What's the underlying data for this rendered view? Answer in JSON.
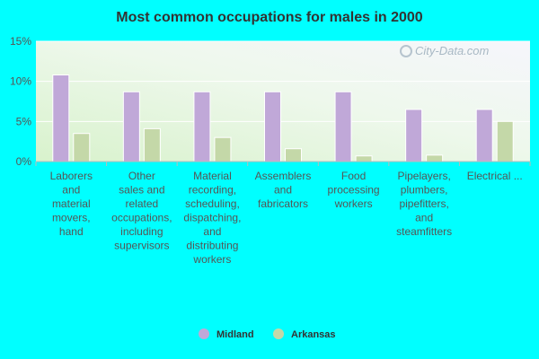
{
  "chart_data": {
    "type": "bar",
    "title": "Most common occupations for males in 2000",
    "categories": [
      [
        "Laborers",
        "and",
        "material",
        "movers,",
        "hand"
      ],
      [
        "Other",
        "sales and",
        "related",
        "occupations,",
        "including",
        "supervisors"
      ],
      [
        "Material",
        "recording,",
        "scheduling,",
        "dispatching,",
        "and",
        "distributing",
        "workers"
      ],
      [
        "Assemblers",
        "and",
        "fabricators"
      ],
      [
        "Food",
        "processing",
        "workers"
      ],
      [
        "Pipelayers,",
        "plumbers,",
        "pipefitters,",
        "and",
        "steamfitters"
      ],
      [
        "Electrical ..."
      ]
    ],
    "series": [
      {
        "name": "Midland",
        "color": "#c0a8d8",
        "values": [
          10.8,
          8.7,
          8.7,
          8.7,
          8.7,
          6.5,
          6.5
        ]
      },
      {
        "name": "Arkansas",
        "color": "#c4d8a8",
        "values": [
          3.5,
          4.1,
          3.0,
          1.6,
          0.7,
          0.8,
          5.0
        ]
      }
    ],
    "ylim": [
      0,
      15
    ],
    "yticks": [
      0,
      5,
      10,
      15
    ],
    "ytick_labels": [
      "0%",
      "5%",
      "10%",
      "15%"
    ],
    "grid": true,
    "legend_position": "bottom"
  },
  "watermark": "City-Data.com"
}
